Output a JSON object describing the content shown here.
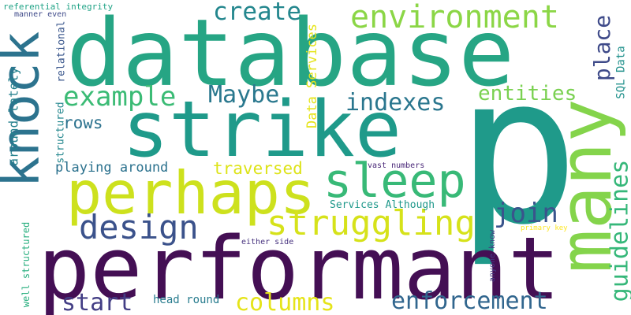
{
  "words": {
    "database": {
      "text": "database",
      "color": "#26a584"
    },
    "p": {
      "text": "p",
      "color": "#1f9a8a"
    },
    "performant": {
      "text": "performant",
      "color": "#440f54"
    },
    "strike": {
      "text": "strike",
      "color": "#1f9a8a"
    },
    "perhaps": {
      "text": "perhaps",
      "color": "#cde11d"
    },
    "many": {
      "text": "many",
      "color": "#84d44b"
    },
    "knock": {
      "text": "knock",
      "color": "#2c738e"
    },
    "sleep": {
      "text": "sleep",
      "color": "#38b977"
    },
    "environment": {
      "text": "environment",
      "color": "#8bd646"
    },
    "struggling": {
      "text": "struggling",
      "color": "#d6e21a"
    },
    "design": {
      "text": "design",
      "color": "#3b528b"
    },
    "create": {
      "text": "create",
      "color": "#24878e"
    },
    "example": {
      "text": "example",
      "color": "#3bbb75"
    },
    "maybe": {
      "text": "Maybe",
      "color": "#2a788e"
    },
    "indexes": {
      "text": "indexes",
      "color": "#2a768e"
    },
    "entities": {
      "text": "entities",
      "color": "#7ad151"
    },
    "place": {
      "text": "place",
      "color": "#3e4a89"
    },
    "guidelines": {
      "text": "guidelines",
      "color": "#35b779"
    },
    "join": {
      "text": "join",
      "color": "#3a548c"
    },
    "start": {
      "text": "start",
      "color": "#433e85"
    },
    "columns": {
      "text": "columns",
      "color": "#e5e419"
    },
    "enforcement": {
      "text": "enforcement",
      "color": "#31668e"
    },
    "rows": {
      "text": "rows",
      "color": "#2c728e"
    },
    "traversed": {
      "text": "traversed",
      "color": "#dde318"
    },
    "playing_around": {
      "text": "playing around",
      "color": "#2c728e"
    },
    "around_lately": {
      "text": "around lately",
      "color": "#26818e"
    },
    "structured": {
      "text": "structured",
      "color": "#24878e"
    },
    "relational": {
      "text": "relational",
      "color": "#39568c"
    },
    "data_services": {
      "text": "Data Services",
      "color": "#e5e419"
    },
    "sql_data": {
      "text": "SQL Data",
      "color": "#21918c"
    },
    "services_although": {
      "text": "Services Although",
      "color": "#1f988b"
    },
    "vast_numbers": {
      "text": "vast numbers",
      "color": "#482677"
    },
    "head_round": {
      "text": "head round",
      "color": "#287c8e"
    },
    "referential_integrity": {
      "text": "referential integrity",
      "color": "#20a386"
    },
    "manner_even": {
      "text": "manner even",
      "color": "#3e4989"
    },
    "either_side": {
      "text": "either side",
      "color": "#46327e"
    },
    "primary_key": {
      "text": "primary key",
      "color": "#fde725"
    },
    "anyone_know": {
      "text": "anyone know",
      "color": "#443983"
    },
    "well_structured": {
      "text": "well structured",
      "color": "#29af7f"
    }
  }
}
